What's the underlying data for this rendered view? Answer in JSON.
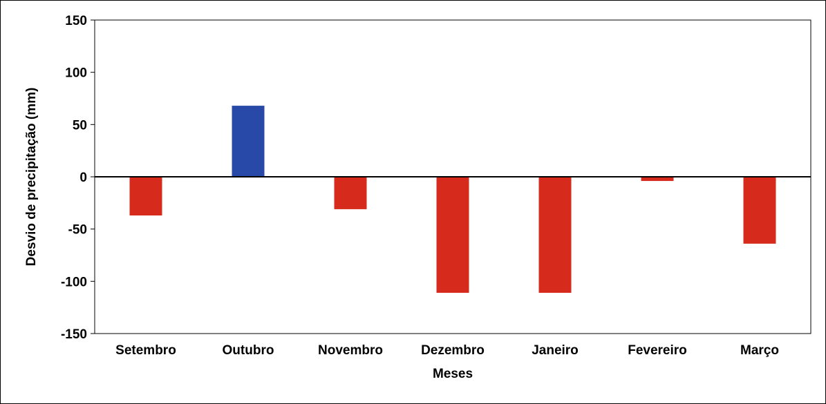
{
  "chart_data": {
    "type": "bar",
    "title": "",
    "xlabel": "Meses",
    "ylabel": "Desvio de precipitação (mm)",
    "categories": [
      "Setembro",
      "Outubro",
      "Novembro",
      "Dezembro",
      "Janeiro",
      "Fevereiro",
      "Março"
    ],
    "values": [
      -37,
      68,
      -31,
      -111,
      -111,
      -4,
      -64
    ],
    "ylim": [
      -150,
      150
    ],
    "yticks": [
      -150,
      -100,
      -50,
      0,
      50,
      100,
      150
    ],
    "ytick_labels": [
      "-150",
      "-100",
      "-50",
      "0",
      "50",
      "100",
      "150"
    ],
    "grid": false,
    "legend": "none",
    "colors": {
      "positive": "#2849A8",
      "negative": "#D62B1C",
      "axis": "#000000"
    }
  }
}
